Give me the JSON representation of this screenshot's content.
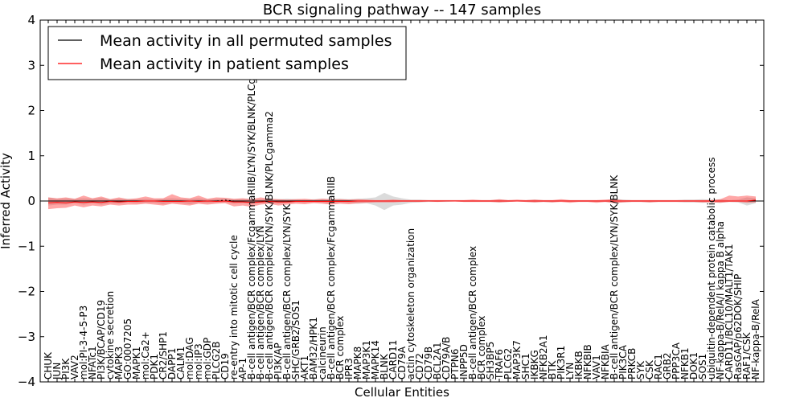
{
  "chart_data": {
    "type": "line",
    "title": "BCR signaling pathway -- 147 samples",
    "xlabel": "Cellular Entities",
    "ylabel": "Inferred Activity",
    "ylim": [
      -4,
      4
    ],
    "yticks": [
      -4,
      -3,
      -2,
      -1,
      0,
      1,
      2,
      3,
      4
    ],
    "ytick_labels": [
      "−4",
      "−3",
      "−2",
      "−1",
      "0",
      "1",
      "2",
      "3",
      "4"
    ],
    "legend": {
      "placement": "top-left",
      "entries": [
        {
          "label": "Mean activity in all permuted samples",
          "color": "#000000"
        },
        {
          "label": "Mean activity in patient samples",
          "color": "#ff0000"
        }
      ]
    },
    "categories": [
      "CHUK",
      "JUN",
      "PI3K",
      "VAV2",
      "mol:PI-3-4-5-P3",
      "NFATc1",
      "PI3K/BCAP/CD19",
      "cytokine secretion",
      "MAPK3",
      "GO:0007205",
      "MAPK1",
      "mol:Ca2+",
      "PDK1",
      "CR2/SHP1",
      "DAPP1",
      "CALM1",
      "mol:DAG",
      "mol:IP3",
      "mol:GDP",
      "PLCG2B",
      "CD19",
      "re-entry into mitotic cell cycle",
      "AP-1",
      "B-cell antigen/BCR complex/FcgammaRIIB/LYN/SYK/BLNK/PLCgamma2",
      "B-cell antigen/BCR complex/LYN",
      "B-cell antigen/BCR complex/LYN/SYK/BLNK/PLCgamma2",
      "PI3K/AP",
      "B-cell antigen/BCR complex/LYN/SYK",
      "SHC/GRB2/SOS1",
      "AKT1",
      "BAM32/HPK1",
      "calcineurin",
      "B-cell antigen/BCR complex/FcgammaRIIB",
      "BCR complex",
      "IPR3",
      "MAPK8",
      "MAP3K1",
      "MAPK14",
      "BLNK",
      "CARD11",
      "CD79A",
      "actin cytoskeleton organization",
      "CD72",
      "CD79B",
      "BCL2A1",
      "CD79A/B",
      "PTPN6",
      "INPP5D",
      "B-cell antigen/BCR complex",
      "BCR complex",
      "SH3BP5",
      "TRAF6",
      "PLCG2",
      "MAP3K7",
      "SHC1",
      "IKBKG",
      "NFKB2A1",
      "BTK",
      "PIK3R1",
      "LYN",
      "IKBKB",
      "NFKBIB",
      "VAV1",
      "NFKBIA",
      "B-cell antigen/BCR complex/LYN/SYK/BLNK",
      "PIK3CA",
      "PRKCB",
      "SYK",
      "CSK",
      "RAC1",
      "GRB2",
      "PPP3CA",
      "NFKB1",
      "DOK1",
      "SOS1",
      "ubiquitin-dependent protein catabolic process",
      "NF-kappa-B/RelA/I kappa B alpha",
      "CARD11/BCL10/MALT1/TAK1",
      "RasGAP/p62DOK/SHIP",
      "RAF1/CSK",
      "NF-kappa-B/RelA"
    ],
    "series": [
      {
        "name": "Mean activity in all permuted samples",
        "color": "#000000",
        "values": [
          0.0,
          0.0,
          0.0,
          0.0,
          0.0,
          0.0,
          0.0,
          0.0,
          0.0,
          0.0,
          0.0,
          0.0,
          0.0,
          0.0,
          0.0,
          0.0,
          0.0,
          0.0,
          0.0,
          0.0,
          0.02,
          0.0,
          0.0,
          0.0,
          0.0,
          0.0,
          0.0,
          0.0,
          0.0,
          0.0,
          0.0,
          0.0,
          0.0,
          0.0,
          0.0,
          0.0,
          0.0,
          0.0,
          0.0,
          0.0,
          0.0,
          0.0,
          0.0,
          0.0,
          0.0,
          0.0,
          0.0,
          0.0,
          0.0,
          0.0,
          0.0,
          0.0,
          0.0,
          0.0,
          0.0,
          0.0,
          0.0,
          0.0,
          0.0,
          0.0,
          0.0,
          0.0,
          0.0,
          0.0,
          0.0,
          0.0,
          0.0,
          0.0,
          0.0,
          0.0,
          0.0,
          0.0,
          0.0,
          0.0,
          0.0,
          0.0,
          0.0,
          0.0,
          0.0,
          0.0,
          0.0
        ],
        "lower": [
          -0.1,
          -0.08,
          -0.08,
          -0.05,
          -0.08,
          -0.05,
          -0.08,
          -0.05,
          -0.06,
          -0.03,
          -0.05,
          -0.04,
          -0.04,
          -0.07,
          -0.04,
          -0.05,
          -0.07,
          -0.04,
          -0.05,
          -0.04,
          -0.03,
          -0.06,
          -0.05,
          -0.07,
          -0.05,
          -0.04,
          -0.06,
          -0.04,
          -0.03,
          -0.04,
          -0.03,
          -0.04,
          -0.06,
          -0.04,
          -0.05,
          -0.06,
          -0.05,
          -0.1,
          -0.2,
          -0.1,
          -0.08,
          -0.04,
          -0.03,
          -0.02,
          -0.02,
          -0.02,
          -0.01,
          -0.02,
          -0.02,
          -0.02,
          -0.02,
          -0.03,
          -0.02,
          -0.01,
          -0.02,
          -0.03,
          -0.02,
          -0.03,
          -0.01,
          -0.02,
          -0.02,
          -0.02,
          -0.02,
          -0.02,
          -0.04,
          -0.03,
          -0.02,
          -0.02,
          -0.03,
          -0.02,
          -0.02,
          -0.02,
          -0.03,
          -0.03,
          -0.04,
          -0.03,
          -0.04,
          -0.02,
          -0.03,
          -0.1,
          -0.05
        ],
        "upper": [
          0.08,
          0.05,
          0.06,
          0.05,
          0.06,
          0.05,
          0.07,
          0.04,
          0.05,
          0.05,
          0.04,
          0.05,
          0.04,
          0.05,
          0.06,
          0.05,
          0.05,
          0.06,
          0.04,
          0.05,
          0.06,
          0.04,
          0.05,
          0.05,
          0.04,
          0.05,
          0.04,
          0.05,
          0.04,
          0.03,
          0.04,
          0.05,
          0.04,
          0.05,
          0.04,
          0.05,
          0.06,
          0.08,
          0.18,
          0.1,
          0.06,
          0.03,
          0.03,
          0.02,
          0.02,
          0.02,
          0.02,
          0.02,
          0.02,
          0.02,
          0.02,
          0.03,
          0.02,
          0.02,
          0.02,
          0.03,
          0.02,
          0.02,
          0.02,
          0.02,
          0.02,
          0.02,
          0.02,
          0.02,
          0.05,
          0.03,
          0.02,
          0.02,
          0.02,
          0.02,
          0.02,
          0.02,
          0.03,
          0.03,
          0.04,
          0.03,
          0.04,
          0.02,
          0.03,
          0.08,
          0.06
        ]
      },
      {
        "name": "Mean activity in patient samples",
        "color": "#ff0000",
        "values": [
          -0.04,
          -0.03,
          -0.04,
          -0.02,
          -0.03,
          -0.02,
          -0.03,
          -0.01,
          -0.02,
          -0.01,
          -0.01,
          0.0,
          0.0,
          -0.01,
          -0.01,
          -0.01,
          0.0,
          -0.01,
          0.0,
          -0.01,
          0.0,
          -0.02,
          -0.02,
          -0.03,
          -0.02,
          -0.01,
          -0.02,
          -0.02,
          -0.01,
          -0.01,
          -0.01,
          -0.01,
          -0.01,
          -0.01,
          -0.01,
          0.0,
          0.0,
          0.0,
          0.0,
          0.0,
          0.0,
          0.0,
          0.0,
          0.0,
          0.0,
          0.0,
          0.0,
          0.0,
          0.0,
          0.0,
          0.0,
          0.0,
          0.0,
          0.0,
          0.0,
          0.0,
          0.0,
          0.0,
          0.0,
          0.0,
          0.0,
          0.0,
          0.0,
          0.0,
          0.0,
          0.0,
          0.0,
          0.0,
          0.0,
          0.0,
          0.0,
          0.0,
          0.0,
          0.0,
          0.0,
          0.0,
          0.0,
          0.0,
          0.0,
          0.0,
          0.02
        ],
        "lower": [
          -0.18,
          -0.16,
          -0.15,
          -0.1,
          -0.14,
          -0.1,
          -0.12,
          -0.08,
          -0.1,
          -0.08,
          -0.08,
          -0.06,
          -0.08,
          -0.1,
          -0.06,
          -0.08,
          -0.1,
          -0.06,
          -0.08,
          -0.06,
          -0.05,
          -0.12,
          -0.1,
          -0.13,
          -0.08,
          -0.06,
          -0.1,
          -0.08,
          -0.06,
          -0.07,
          -0.05,
          -0.06,
          -0.08,
          -0.06,
          -0.07,
          -0.05,
          -0.04,
          -0.03,
          -0.03,
          -0.03,
          -0.02,
          -0.02,
          -0.02,
          -0.01,
          -0.02,
          -0.01,
          -0.01,
          -0.02,
          -0.02,
          -0.02,
          -0.02,
          -0.03,
          -0.02,
          -0.01,
          -0.02,
          -0.03,
          -0.02,
          -0.03,
          -0.02,
          -0.04,
          -0.02,
          -0.02,
          -0.04,
          -0.02,
          -0.05,
          -0.03,
          -0.02,
          -0.02,
          -0.03,
          -0.02,
          -0.02,
          -0.02,
          -0.02,
          -0.02,
          -0.03,
          -0.03,
          -0.04,
          -0.02,
          -0.02,
          -0.04,
          -0.03
        ],
        "upper": [
          0.08,
          0.06,
          0.08,
          0.05,
          0.12,
          0.06,
          0.1,
          0.04,
          0.08,
          0.04,
          0.06,
          0.1,
          0.06,
          0.06,
          0.15,
          0.08,
          0.06,
          0.12,
          0.05,
          0.08,
          0.07,
          0.05,
          0.06,
          0.04,
          0.08,
          0.05,
          0.04,
          0.03,
          0.04,
          0.05,
          0.03,
          0.05,
          0.04,
          0.04,
          0.03,
          0.04,
          0.03,
          0.02,
          0.02,
          0.03,
          0.02,
          0.02,
          0.02,
          0.02,
          0.02,
          0.02,
          0.02,
          0.02,
          0.03,
          0.02,
          0.02,
          0.04,
          0.02,
          0.03,
          0.02,
          0.03,
          0.02,
          0.02,
          0.04,
          0.02,
          0.02,
          0.02,
          0.02,
          0.03,
          0.04,
          0.02,
          0.02,
          0.02,
          0.02,
          0.02,
          0.02,
          0.02,
          0.02,
          0.02,
          0.02,
          0.02,
          0.04,
          0.12,
          0.1,
          0.12,
          0.1
        ]
      }
    ]
  }
}
